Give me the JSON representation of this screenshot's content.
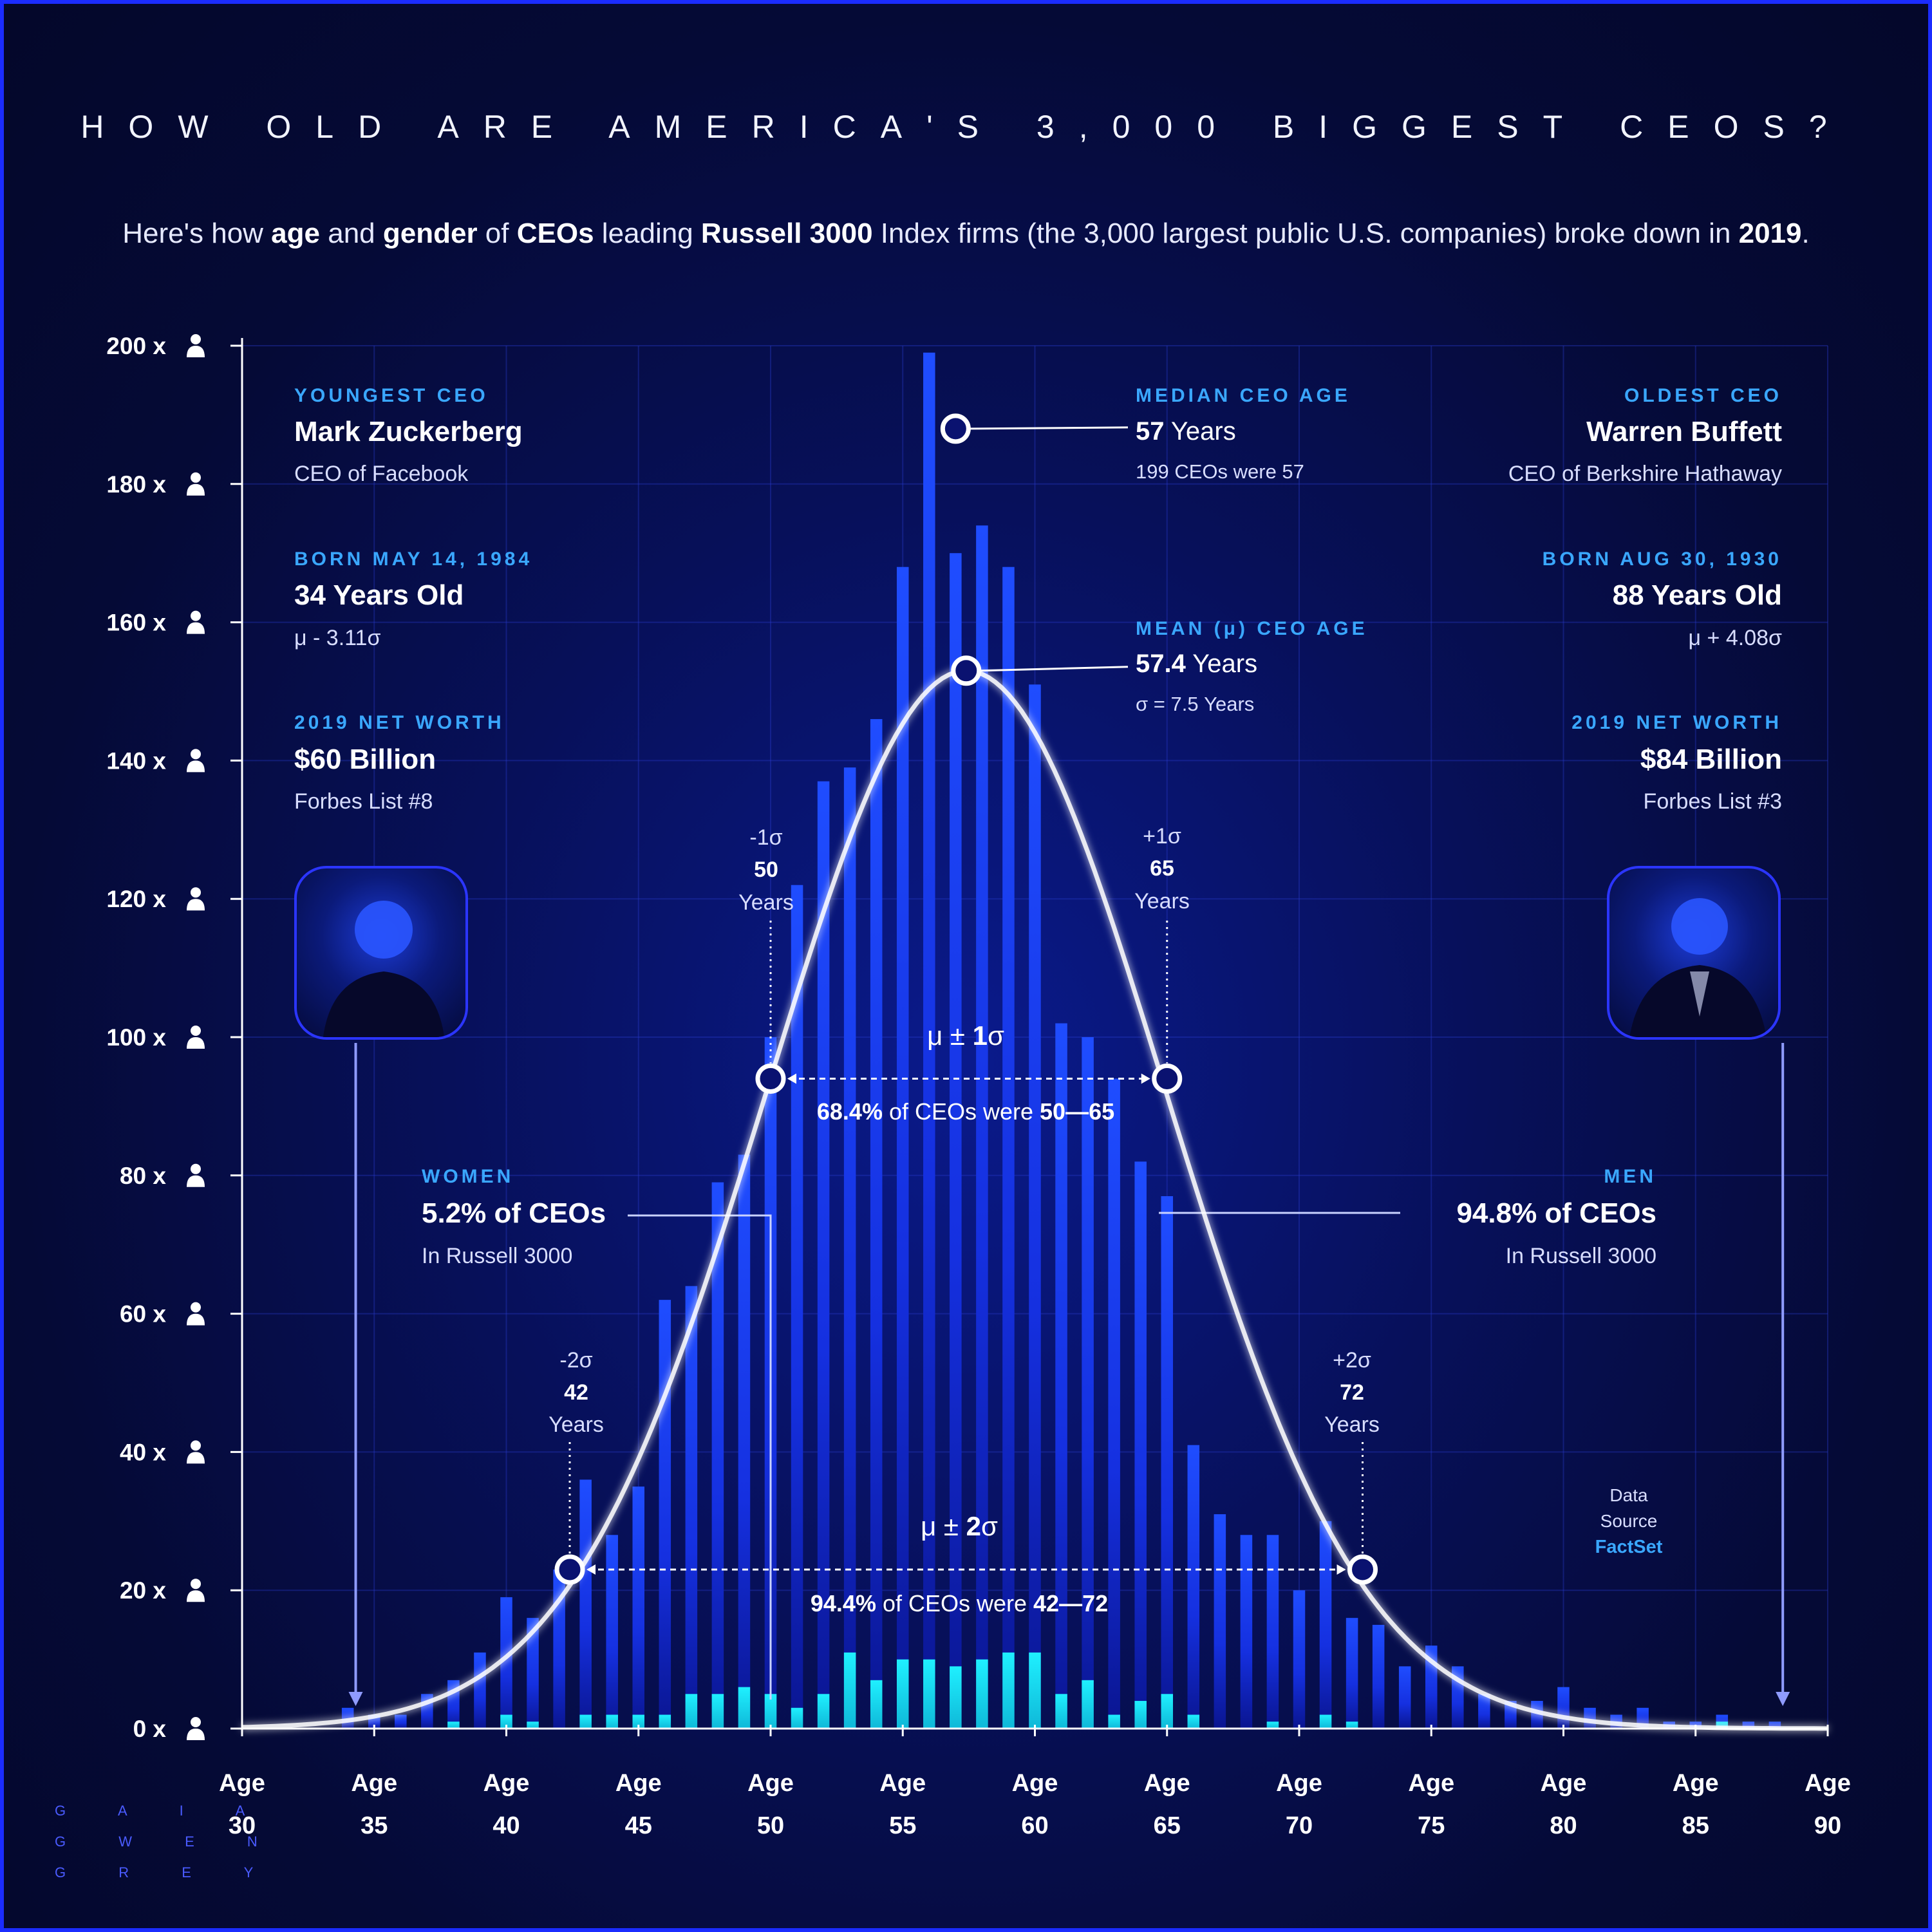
{
  "title": "HOW OLD ARE AMERICA'S 3,000 BIGGEST CEOS?",
  "subtitle": {
    "parts": [
      "Here's how ",
      "age",
      " and ",
      "gender",
      " of ",
      "CEOs",
      " leading ",
      "Russell 3000",
      " Index firms (the 3,000 largest public U.S. companies) broke down in ",
      "2019",
      "."
    ]
  },
  "youngest": {
    "label": "YOUNGEST CEO",
    "name": "Mark Zuckerberg",
    "role": "CEO of Facebook",
    "born_label": "BORN MAY 14, 1984",
    "age": "34 Years Old",
    "sigma": "μ - 3.11σ",
    "worth_label": "2019 NET WORTH",
    "worth": "$60 Billion",
    "forbes": "Forbes List #8"
  },
  "oldest": {
    "label": "OLDEST CEO",
    "name": "Warren Buffett",
    "role": "CEO  of Berkshire Hathaway",
    "born_label": "BORN AUG 30, 1930",
    "age": "88 Years Old",
    "sigma": "μ + 4.08σ",
    "worth_label": "2019 NET WORTH",
    "worth": "$84 Billion",
    "forbes": "Forbes List #3"
  },
  "median": {
    "label": "MEDIAN CEO AGE",
    "value": "57",
    "unit": " Years",
    "note": "199 CEOs were 57"
  },
  "mean": {
    "label": "MEAN (μ) CEO AGE",
    "value": "57.4",
    "unit": " Years",
    "note": "σ = 7.5 Years"
  },
  "sigma_marks": {
    "m1": {
      "label": "-1σ",
      "value": "50",
      "unit": "Years"
    },
    "p1": {
      "label": "+1σ",
      "value": "65",
      "unit": "Years"
    },
    "m2": {
      "label": "-2σ",
      "value": "42",
      "unit": "Years"
    },
    "p2": {
      "label": "+2σ",
      "value": "72",
      "unit": "Years"
    }
  },
  "band1": {
    "title_pre": "μ ± ",
    "title_num": "1",
    "title_post": "σ",
    "pct": "68.4%",
    "mid": " of CEOs were ",
    "range": "50—65"
  },
  "band2": {
    "title_pre": "μ ± ",
    "title_num": "2",
    "title_post": "σ",
    "pct": "94.4%",
    "mid": " of CEOs were ",
    "range": "42—72"
  },
  "women": {
    "label": "WOMEN",
    "value": "5.2% of CEOs",
    "note": "In Russell 3000"
  },
  "men": {
    "label": "MEN",
    "value": "94.8% of CEOs",
    "note": "In Russell 3000"
  },
  "source": {
    "line1": "Data",
    "line2": "Source",
    "line3": "FactSet"
  },
  "brand": [
    "G A I A",
    "G W E N",
    "G R E Y"
  ],
  "colors": {
    "bar_total": "#1b3cff",
    "bar_women": "#19e3f2",
    "curve": "#ffffff",
    "label": "#3aa7ff",
    "axis": "#ffffff"
  },
  "icons": {
    "y_tick_icon": "person-icon"
  },
  "chart_data": {
    "type": "bar",
    "xlabel_prefix": "Age",
    "x_ticks": [
      30,
      35,
      40,
      45,
      50,
      55,
      60,
      65,
      70,
      75,
      80,
      85,
      90
    ],
    "y_ticks": [
      0,
      20,
      40,
      60,
      80,
      100,
      120,
      140,
      160,
      180,
      200
    ],
    "y_tick_suffix": "x",
    "xlim": [
      30,
      90
    ],
    "ylim": [
      0,
      200
    ],
    "categories": [
      34,
      35,
      36,
      37,
      38,
      39,
      40,
      41,
      42,
      43,
      44,
      45,
      46,
      47,
      48,
      49,
      50,
      51,
      52,
      53,
      54,
      55,
      56,
      57,
      58,
      59,
      60,
      61,
      62,
      63,
      64,
      65,
      66,
      67,
      68,
      69,
      70,
      71,
      72,
      73,
      74,
      75,
      76,
      77,
      78,
      79,
      80,
      81,
      82,
      83,
      84,
      85,
      86,
      87,
      88
    ],
    "series": [
      {
        "values": [
          3,
          2,
          2,
          5,
          7,
          11,
          19,
          16,
          23,
          36,
          28,
          35,
          62,
          64,
          79,
          83,
          100,
          122,
          137,
          139,
          146,
          168,
          199,
          170,
          174,
          168,
          151,
          102,
          100,
          94,
          82,
          77,
          41,
          31,
          28,
          28,
          20,
          30,
          16,
          15,
          9,
          12,
          9,
          5,
          4,
          4,
          6,
          3,
          2,
          3,
          1,
          1,
          2,
          1,
          1
        ]
      },
      {
        "values": [
          0,
          0,
          0,
          0,
          1,
          0,
          2,
          1,
          0,
          2,
          2,
          2,
          2,
          5,
          5,
          6,
          5,
          3,
          5,
          11,
          7,
          10,
          10,
          9,
          10,
          11,
          11,
          5,
          7,
          2,
          4,
          5,
          2,
          0,
          0,
          1,
          0,
          2,
          1,
          0,
          0,
          0,
          0,
          0,
          0,
          0,
          0,
          0,
          0,
          0,
          0,
          0,
          1,
          0,
          0
        ]
      }
    ],
    "normal_curve": {
      "mean": 57.4,
      "sd": 7.5
    },
    "markers": [
      {
        "x": 57,
        "y": 188
      },
      {
        "x": 57.4,
        "y": 153
      },
      {
        "x": 50,
        "y": 94
      },
      {
        "x": 65,
        "y": 94
      },
      {
        "x": 42.4,
        "y": 23
      },
      {
        "x": 72.4,
        "y": 23
      }
    ]
  }
}
